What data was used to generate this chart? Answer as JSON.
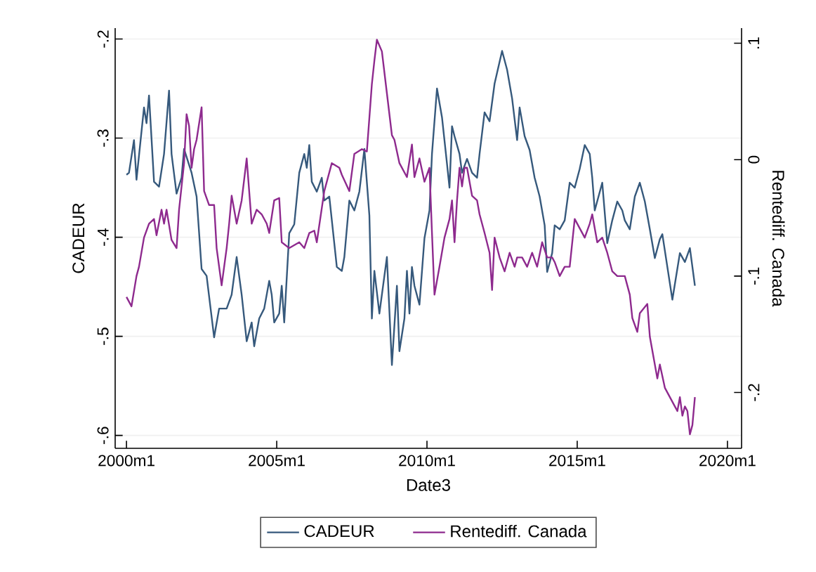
{
  "chart_data": {
    "type": "line",
    "xlabel": "Date3",
    "ylabel": "CADEUR",
    "y2label": "Rentediff. Canada",
    "xlim": [
      "1999-08-16",
      "2020-06-20"
    ],
    "xticks": [
      {
        "value": "2000-01",
        "label": "2000m1"
      },
      {
        "value": "2005-01",
        "label": "2005m1"
      },
      {
        "value": "2010-01",
        "label": "2010m1"
      },
      {
        "value": "2015-01",
        "label": "2015m1"
      },
      {
        "value": "2020-01",
        "label": "2020m1"
      }
    ],
    "ylim": [
      -0.613,
      -0.189
    ],
    "yticks": [
      {
        "value": -0.6,
        "label": "-.6"
      },
      {
        "value": -0.5,
        "label": "-.5"
      },
      {
        "value": -0.4,
        "label": "-.4"
      },
      {
        "value": -0.3,
        "label": "-.3"
      },
      {
        "value": -0.2,
        "label": "-.2"
      }
    ],
    "y2lim": [
      -0.248,
      0.113
    ],
    "y2ticks": [
      {
        "value": -0.2,
        "label": "-.2"
      },
      {
        "value": -0.1,
        "label": "-.1"
      },
      0,
      {
        "value": 0.1,
        "label": ".1"
      }
    ],
    "grid": "y",
    "legend": "bottom",
    "marker": "none",
    "line_style": "solid",
    "series": [
      {
        "name": "CADEUR",
        "color": "#36597c",
        "x": [
          "2000-01",
          "2000-02",
          "2000-04",
          "2000-05",
          "2000-08",
          "2000-09",
          "2000-10",
          "2000-12",
          "2001-02",
          "2001-04",
          "2001-06",
          "2001-07",
          "2001-09",
          "2001-11",
          "2001-12",
          "2002-03",
          "2002-05",
          "2002-07",
          "2002-09",
          "2002-12",
          "2003-02",
          "2003-05",
          "2003-07",
          "2003-09",
          "2003-11",
          "2004-01",
          "2004-03",
          "2004-04",
          "2004-06",
          "2004-08",
          "2004-10",
          "2004-11",
          "2004-12",
          "2005-02",
          "2005-03",
          "2005-04",
          "2005-06",
          "2005-08",
          "2005-10",
          "2005-12",
          "2006-01",
          "2006-02",
          "2006-03",
          "2006-05",
          "2006-07",
          "2006-08",
          "2006-10",
          "2007-01",
          "2007-03",
          "2007-04",
          "2007-06",
          "2007-08",
          "2007-10",
          "2007-12",
          "2008-02",
          "2008-03",
          "2008-04",
          "2008-06",
          "2008-07",
          "2008-09",
          "2008-11",
          "2009-01",
          "2009-02",
          "2009-04",
          "2009-05",
          "2009-06",
          "2009-07",
          "2009-08",
          "2009-10",
          "2009-12",
          "2010-02",
          "2010-03",
          "2010-05",
          "2010-07",
          "2010-09",
          "2010-10",
          "2010-11",
          "2010-12",
          "2011-02",
          "2011-03",
          "2011-05",
          "2011-07",
          "2011-09",
          "2011-10",
          "2011-12",
          "2012-02",
          "2012-04",
          "2012-07",
          "2012-09",
          "2012-11",
          "2013-01",
          "2013-02",
          "2013-04",
          "2013-06",
          "2013-08",
          "2013-10",
          "2013-12",
          "2014-01",
          "2014-03",
          "2014-04",
          "2014-06",
          "2014-08",
          "2014-10",
          "2014-12",
          "2015-02",
          "2015-04",
          "2015-06",
          "2015-07",
          "2015-08",
          "2015-11",
          "2016-01",
          "2016-03",
          "2016-05",
          "2016-07",
          "2016-08",
          "2016-10",
          "2016-12",
          "2017-02",
          "2017-04",
          "2017-06",
          "2017-08",
          "2017-10",
          "2017-11",
          "2018-01",
          "2018-03",
          "2018-06",
          "2018-08",
          "2018-10",
          "2018-12"
        ],
        "values": [
          -0.337,
          -0.335,
          -0.302,
          -0.342,
          -0.269,
          -0.285,
          -0.257,
          -0.344,
          -0.349,
          -0.316,
          -0.252,
          -0.316,
          -0.356,
          -0.34,
          -0.311,
          -0.335,
          -0.359,
          -0.432,
          -0.439,
          -0.501,
          -0.472,
          -0.472,
          -0.458,
          -0.42,
          -0.458,
          -0.505,
          -0.486,
          -0.51,
          -0.482,
          -0.472,
          -0.444,
          -0.458,
          -0.486,
          -0.477,
          -0.449,
          -0.486,
          -0.396,
          -0.387,
          -0.335,
          -0.316,
          -0.33,
          -0.307,
          -0.344,
          -0.354,
          -0.34,
          -0.363,
          -0.359,
          -0.43,
          -0.434,
          -0.42,
          -0.363,
          -0.373,
          -0.354,
          -0.311,
          -0.378,
          -0.482,
          -0.434,
          -0.477,
          -0.458,
          -0.42,
          -0.529,
          -0.449,
          -0.515,
          -0.482,
          -0.434,
          -0.477,
          -0.43,
          -0.449,
          -0.468,
          -0.401,
          -0.373,
          -0.316,
          -0.25,
          -0.279,
          -0.326,
          -0.35,
          -0.288,
          -0.298,
          -0.316,
          -0.335,
          -0.321,
          -0.335,
          -0.34,
          -0.316,
          -0.274,
          -0.283,
          -0.245,
          -0.212,
          -0.231,
          -0.26,
          -0.302,
          -0.269,
          -0.298,
          -0.312,
          -0.34,
          -0.359,
          -0.388,
          -0.435,
          -0.416,
          -0.388,
          -0.392,
          -0.383,
          -0.345,
          -0.35,
          -0.331,
          -0.307,
          -0.316,
          -0.34,
          -0.373,
          -0.345,
          -0.406,
          -0.383,
          -0.364,
          -0.373,
          -0.383,
          -0.392,
          -0.359,
          -0.345,
          -0.364,
          -0.392,
          -0.421,
          -0.402,
          -0.397,
          -0.43,
          -0.463,
          -0.416,
          -0.425,
          -0.411,
          -0.449
        ]
      },
      {
        "name": "Rentediff. Canada",
        "color": "#8e2a8e",
        "axis": "y2",
        "x": [
          "2000-01",
          "2000-03",
          "2000-05",
          "2000-06",
          "2000-08",
          "2000-10",
          "2000-12",
          "2001-01",
          "2001-03",
          "2001-04",
          "2001-05",
          "2001-07",
          "2001-09",
          "2001-10",
          "2001-12",
          "2002-01",
          "2002-02",
          "2002-03",
          "2002-04",
          "2002-05",
          "2002-07",
          "2002-08",
          "2002-10",
          "2002-12",
          "2003-01",
          "2003-03",
          "2003-05",
          "2003-06",
          "2003-07",
          "2003-09",
          "2003-11",
          "2004-01",
          "2004-03",
          "2004-05",
          "2004-07",
          "2004-09",
          "2004-10",
          "2004-12",
          "2005-02",
          "2005-03",
          "2005-06",
          "2005-10",
          "2005-12",
          "2006-02",
          "2006-04",
          "2006-05",
          "2006-08",
          "2006-11",
          "2007-02",
          "2007-03",
          "2007-06",
          "2007-08",
          "2007-11",
          "2008-01",
          "2008-03",
          "2008-04",
          "2008-05",
          "2008-07",
          "2008-09",
          "2008-11",
          "2008-12",
          "2009-02",
          "2009-05",
          "2009-07",
          "2009-08",
          "2009-10",
          "2009-12",
          "2010-02",
          "2010-03",
          "2010-04",
          "2010-06",
          "2010-08",
          "2010-10",
          "2010-11",
          "2010-12",
          "2011-01",
          "2011-02",
          "2011-03",
          "2011-04",
          "2011-05",
          "2011-07",
          "2011-09",
          "2011-10",
          "2011-12",
          "2012-02",
          "2012-03",
          "2012-04",
          "2012-06",
          "2012-08",
          "2012-10",
          "2012-12",
          "2013-01",
          "2013-03",
          "2013-05",
          "2013-07",
          "2013-09",
          "2013-11",
          "2014-01",
          "2014-03",
          "2014-04",
          "2014-06",
          "2014-08",
          "2014-10",
          "2014-12",
          "2015-02",
          "2015-04",
          "2015-06",
          "2015-07",
          "2015-09",
          "2015-11",
          "2016-01",
          "2016-03",
          "2016-05",
          "2016-08",
          "2016-10",
          "2016-11",
          "2017-01",
          "2017-02",
          "2017-05",
          "2017-06",
          "2017-07",
          "2017-09",
          "2017-10",
          "2017-12",
          "2018-02",
          "2018-04",
          "2018-05",
          "2018-06",
          "2018-07",
          "2018-08",
          "2018-09",
          "2018-10",
          "2018-11",
          "2018-12"
        ],
        "values": [
          -0.118,
          -0.126,
          -0.1,
          -0.092,
          -0.067,
          -0.055,
          -0.051,
          -0.065,
          -0.043,
          -0.055,
          -0.043,
          -0.069,
          -0.076,
          -0.043,
          -0.003,
          0.039,
          0.029,
          -0.007,
          0.009,
          0.017,
          0.045,
          -0.027,
          -0.039,
          -0.039,
          -0.076,
          -0.108,
          -0.076,
          -0.055,
          -0.031,
          -0.055,
          -0.035,
          0.001,
          -0.055,
          -0.043,
          -0.047,
          -0.055,
          -0.063,
          -0.035,
          -0.033,
          -0.071,
          -0.076,
          -0.071,
          -0.076,
          -0.063,
          -0.061,
          -0.071,
          -0.027,
          -0.003,
          -0.007,
          -0.013,
          -0.027,
          0.005,
          0.009,
          0.007,
          0.065,
          0.085,
          0.103,
          0.093,
          0.057,
          0.021,
          0.017,
          -0.003,
          -0.015,
          0.013,
          -0.015,
          0.001,
          -0.019,
          -0.007,
          -0.063,
          -0.116,
          -0.092,
          -0.067,
          -0.051,
          -0.035,
          -0.071,
          -0.035,
          -0.007,
          -0.023,
          -0.007,
          -0.007,
          -0.031,
          -0.035,
          -0.047,
          -0.063,
          -0.08,
          -0.112,
          -0.067,
          -0.084,
          -0.096,
          -0.08,
          -0.092,
          -0.084,
          -0.084,
          -0.092,
          -0.08,
          -0.092,
          -0.071,
          -0.084,
          -0.084,
          -0.088,
          -0.1,
          -0.092,
          -0.092,
          -0.051,
          -0.059,
          -0.067,
          -0.055,
          -0.047,
          -0.071,
          -0.067,
          -0.08,
          -0.096,
          -0.1,
          -0.1,
          -0.116,
          -0.136,
          -0.148,
          -0.132,
          -0.124,
          -0.152,
          -0.164,
          -0.188,
          -0.176,
          -0.196,
          -0.204,
          -0.212,
          -0.216,
          -0.204,
          -0.22,
          -0.212,
          -0.216,
          -0.236,
          -0.228,
          -0.204
        ]
      }
    ]
  }
}
